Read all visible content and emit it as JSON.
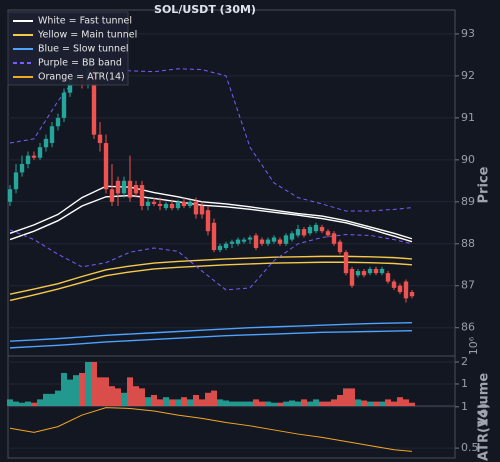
{
  "chart_data": [
    {
      "type": "candlestick",
      "title": "SOL/USDT (30M)",
      "y_label": "Price",
      "open": [
        89.0,
        89.3,
        89.7,
        89.9,
        90.1,
        90.05,
        90.3,
        90.4,
        90.8,
        91.0,
        91.6,
        91.9,
        92.0,
        91.8,
        92.2,
        90.6,
        90.4,
        89.3,
        89.5,
        89.2,
        89.5,
        89.4,
        89.4,
        88.9,
        89.0,
        88.95,
        88.85,
        88.95,
        88.85,
        89.0,
        88.9,
        89.0,
        88.9,
        88.8,
        88.5,
        87.85,
        87.9,
        88.0,
        88.0,
        88.05,
        88.1,
        88.2,
        88.1,
        88.0,
        88.05,
        88.1,
        88.0,
        88.1,
        88.2,
        88.35,
        88.25,
        88.3,
        88.4,
        88.3,
        88.25,
        88.05,
        87.8,
        87.4,
        87.25,
        87.35,
        87.3,
        87.4,
        87.3,
        87.3,
        87.1,
        87.0,
        87.1,
        86.85
      ],
      "high": [
        89.4,
        89.9,
        90.1,
        90.2,
        90.2,
        90.4,
        90.6,
        90.9,
        91.1,
        91.7,
        92.0,
        92.3,
        92.1,
        92.4,
        92.3,
        90.9,
        90.6,
        89.9,
        89.6,
        89.6,
        90.1,
        89.5,
        89.5,
        89.1,
        89.1,
        89.1,
        89.0,
        89.05,
        89.05,
        89.1,
        89.05,
        89.1,
        89.0,
        88.9,
        88.6,
        88.0,
        88.05,
        88.1,
        88.15,
        88.15,
        88.2,
        88.25,
        88.15,
        88.15,
        88.2,
        88.15,
        88.25,
        88.3,
        88.45,
        88.4,
        88.45,
        88.5,
        88.45,
        88.35,
        88.3,
        88.1,
        87.85,
        87.45,
        87.4,
        87.4,
        87.45,
        87.45,
        87.45,
        87.35,
        87.15,
        87.05,
        87.15,
        86.9
      ],
      "low": [
        88.9,
        89.2,
        89.6,
        89.8,
        90.0,
        90.0,
        90.2,
        90.3,
        90.7,
        90.9,
        91.5,
        91.8,
        91.7,
        91.7,
        90.5,
        90.2,
        89.2,
        88.9,
        88.9,
        89.1,
        89.0,
        89.1,
        88.8,
        88.8,
        88.9,
        88.8,
        88.8,
        88.8,
        88.8,
        88.85,
        88.85,
        88.6,
        88.6,
        88.2,
        87.8,
        87.8,
        87.85,
        87.9,
        87.95,
        88.0,
        88.0,
        87.85,
        87.95,
        87.95,
        88.0,
        87.95,
        87.95,
        88.05,
        88.15,
        88.15,
        88.2,
        88.25,
        88.25,
        88.15,
        87.95,
        87.75,
        87.25,
        86.95,
        87.2,
        87.2,
        87.25,
        87.25,
        87.25,
        87.05,
        86.9,
        86.8,
        86.6,
        86.7
      ],
      "close": [
        89.3,
        89.7,
        89.9,
        90.1,
        90.05,
        90.3,
        90.5,
        90.8,
        91.0,
        91.6,
        91.9,
        92.0,
        91.8,
        92.2,
        90.6,
        90.4,
        89.3,
        89.0,
        89.2,
        89.5,
        89.1,
        89.2,
        88.9,
        89.0,
        88.95,
        88.9,
        88.95,
        88.85,
        89.0,
        88.9,
        89.0,
        88.7,
        88.7,
        88.3,
        87.85,
        87.95,
        88.0,
        88.05,
        88.1,
        88.1,
        88.15,
        87.9,
        88.0,
        88.1,
        88.15,
        88.0,
        88.2,
        88.25,
        88.35,
        88.2,
        88.4,
        88.45,
        88.3,
        88.2,
        88.0,
        87.8,
        87.3,
        87.0,
        87.35,
        87.25,
        87.4,
        87.3,
        87.4,
        87.1,
        86.95,
        86.85,
        86.7,
        86.75
      ],
      "up_color": "#26a69a",
      "down_color": "#ef5350",
      "ylim": [
        85.35,
        93.57
      ],
      "yticks": [
        86,
        87,
        88,
        89,
        90,
        91,
        92,
        93
      ],
      "grid": true,
      "legend": "upper left",
      "overlays": {
        "x": [
          0,
          4,
          8,
          12,
          16,
          20,
          24,
          28,
          32,
          36,
          40,
          44,
          48,
          52,
          56,
          60,
          64,
          67
        ],
        "series": [
          {
            "name": "White = Fast tunnel",
            "color": "#ffffff",
            "dashed": false,
            "upper": [
              88.25,
              88.45,
              88.7,
              89.1,
              89.37,
              89.35,
              89.22,
              89.12,
              89.0,
              88.95,
              88.88,
              88.8,
              88.72,
              88.66,
              88.55,
              88.4,
              88.25,
              88.12
            ],
            "lower": [
              88.1,
              88.3,
              88.55,
              88.9,
              89.12,
              89.15,
              89.08,
              89.0,
              88.92,
              88.88,
              88.82,
              88.75,
              88.68,
              88.6,
              88.5,
              88.35,
              88.18,
              88.05
            ]
          },
          {
            "name": "Yellow = Main tunnel",
            "color": "#f7c948",
            "dashed": false,
            "upper": [
              86.8,
              86.92,
              87.05,
              87.22,
              87.38,
              87.47,
              87.54,
              87.58,
              87.61,
              87.64,
              87.66,
              87.68,
              87.69,
              87.7,
              87.7,
              87.69,
              87.67,
              87.64
            ],
            "lower": [
              86.65,
              86.78,
              86.92,
              87.08,
              87.24,
              87.33,
              87.4,
              87.44,
              87.47,
              87.5,
              87.52,
              87.54,
              87.55,
              87.56,
              87.56,
              87.55,
              87.53,
              87.5
            ]
          },
          {
            "name": "Blue = Slow tunnel",
            "color": "#4da3ff",
            "dashed": false,
            "upper": [
              85.68,
              85.71,
              85.74,
              85.78,
              85.82,
              85.85,
              85.88,
              85.91,
              85.94,
              85.97,
              86.0,
              86.02,
              86.04,
              86.06,
              86.08,
              86.1,
              86.11,
              86.12
            ],
            "lower": [
              85.52,
              85.55,
              85.58,
              85.62,
              85.66,
              85.69,
              85.72,
              85.75,
              85.78,
              85.81,
              85.83,
              85.85,
              85.87,
              85.89,
              85.9,
              85.91,
              85.92,
              85.93
            ]
          },
          {
            "name": "Purple = BB band",
            "color": "#7b5cff",
            "dashed": true,
            "upper": [
              90.4,
              90.5,
              91.4,
              92.15,
              92.18,
              92.12,
              92.1,
              92.17,
              92.15,
              92.0,
              90.3,
              89.45,
              89.1,
              88.95,
              88.78,
              88.78,
              88.82,
              88.86
            ],
            "lower": [
              88.33,
              88.1,
              87.75,
              87.45,
              87.55,
              87.8,
              87.9,
              87.82,
              87.35,
              86.9,
              86.95,
              87.6,
              88.0,
              88.15,
              88.22,
              88.2,
              88.1,
              88.0
            ]
          }
        ]
      }
    },
    {
      "type": "bar",
      "y_label": "Volume",
      "y_offset_label": "10⁶",
      "values": [
        0.3,
        0.2,
        0.15,
        0.2,
        0.15,
        0.3,
        0.55,
        0.55,
        0.7,
        1.5,
        1.2,
        1.4,
        1.5,
        2.0,
        2.0,
        1.3,
        1.3,
        0.9,
        0.8,
        0.6,
        1.3,
        0.9,
        0.8,
        0.4,
        0.5,
        0.3,
        0.4,
        0.3,
        0.3,
        0.4,
        0.3,
        0.5,
        0.3,
        0.6,
        0.7,
        0.3,
        0.25,
        0.2,
        0.2,
        0.2,
        0.2,
        0.3,
        0.2,
        0.2,
        0.15,
        0.15,
        0.2,
        0.25,
        0.2,
        0.3,
        0.2,
        0.3,
        0.2,
        0.2,
        0.3,
        0.5,
        0.8,
        0.8,
        0.3,
        0.25,
        0.2,
        0.2,
        0.2,
        0.3,
        0.2,
        0.4,
        0.3,
        0.15
      ],
      "ylim": [
        0,
        2.27
      ],
      "yticks": [
        1,
        2
      ]
    },
    {
      "type": "line",
      "y_label": "ATR(14)",
      "x": [
        0,
        4,
        8,
        12,
        16,
        20,
        24,
        28,
        32,
        36,
        40,
        44,
        48,
        52,
        56,
        60,
        64,
        67
      ],
      "series": [
        {
          "name": "Orange = ATR(14)",
          "color": "#f5a623",
          "values": [
            0.74,
            0.69,
            0.76,
            0.9,
            0.99,
            0.98,
            0.95,
            0.9,
            0.86,
            0.81,
            0.77,
            0.72,
            0.67,
            0.63,
            0.58,
            0.53,
            0.48,
            0.46
          ]
        }
      ],
      "ylim": [
        0.38,
        1.01
      ],
      "yticks": [
        0.5,
        1
      ]
    }
  ]
}
